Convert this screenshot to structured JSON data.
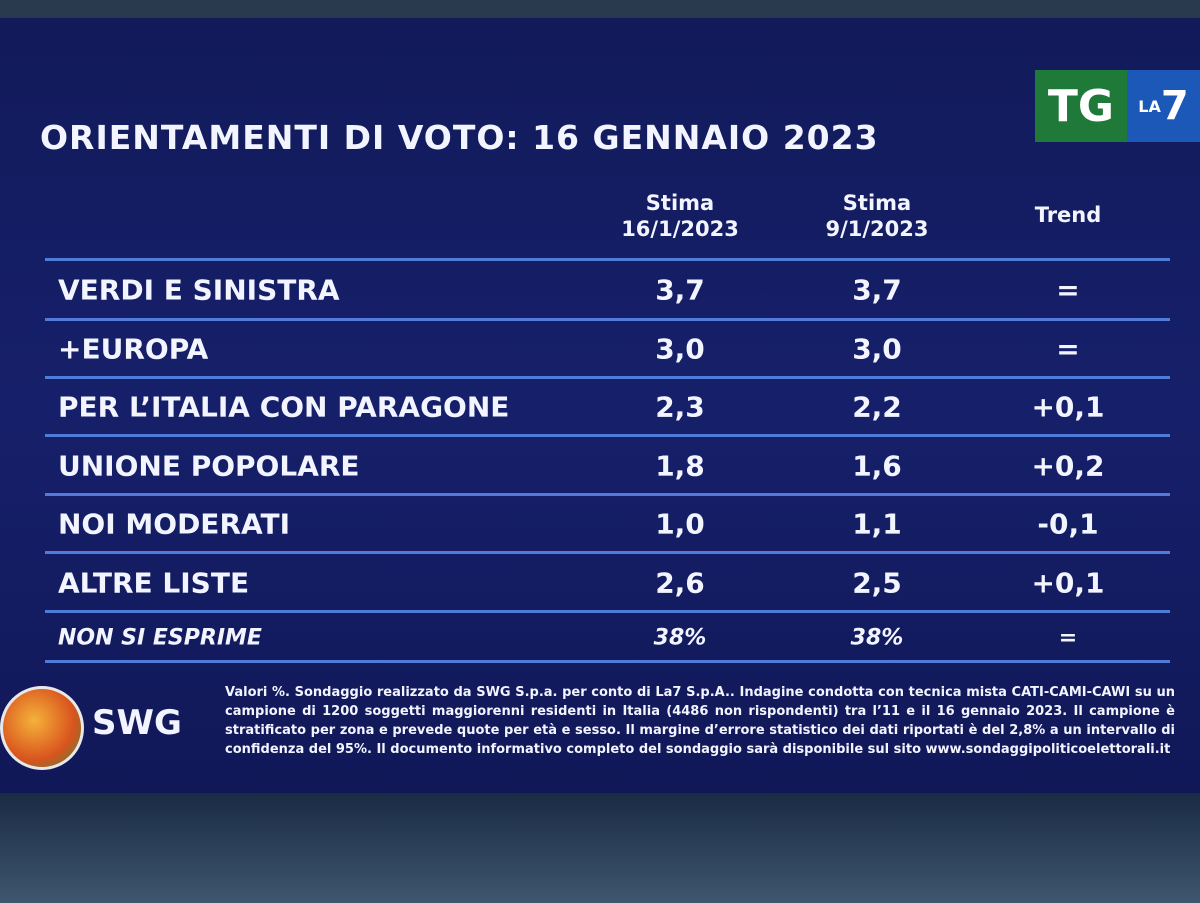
{
  "header": {
    "title": "ORIENTAMENTI DI VOTO: 16 GENNAIO 2023",
    "logo_tg": "TG",
    "logo_la": "LA",
    "logo_7": "7"
  },
  "table": {
    "columns": [
      [
        "Stima",
        "16/1/2023"
      ],
      [
        "Stima",
        "9/1/2023"
      ],
      [
        "Trend"
      ]
    ],
    "rows": [
      [
        "VERDI E SINISTRA",
        "3,7",
        "3,7",
        "="
      ],
      [
        "+EUROPA",
        "3,0",
        "3,0",
        "="
      ],
      [
        "PER L’ITALIA CON PARAGONE",
        "2,3",
        "2,2",
        "+0,1"
      ],
      [
        "UNIONE POPOLARE",
        "1,8",
        "1,6",
        "+0,2"
      ],
      [
        "NOI MODERATI",
        "1,0",
        "1,1",
        "-0,1"
      ],
      [
        "ALTRE LISTE",
        "2,6",
        "2,5",
        "+0,1"
      ],
      [
        "NON SI ESPRIME",
        "38%",
        "38%",
        "="
      ]
    ]
  },
  "footer": {
    "brand": "SWG",
    "note": "Valori %. Sondaggio realizzato da SWG S.p.a. per conto di La7 S.p.A.. Indagine condotta con tecnica mista CATI-CAMI-CAWI su un campione di 1200 soggetti maggiorenni residenti in Italia (4486 non rispondenti) tra l’11 e il 16 gennaio 2023. Il campione è stratificato per zona e prevede quote per età e sesso. Il margine d’errore statistico dei dati riportati è del 2,8% a un intervallo di confidenza del 95%. Il documento informativo completo del sondaggio sarà disponibile sul sito www.sondaggipoliticoelettorali.it"
  }
}
